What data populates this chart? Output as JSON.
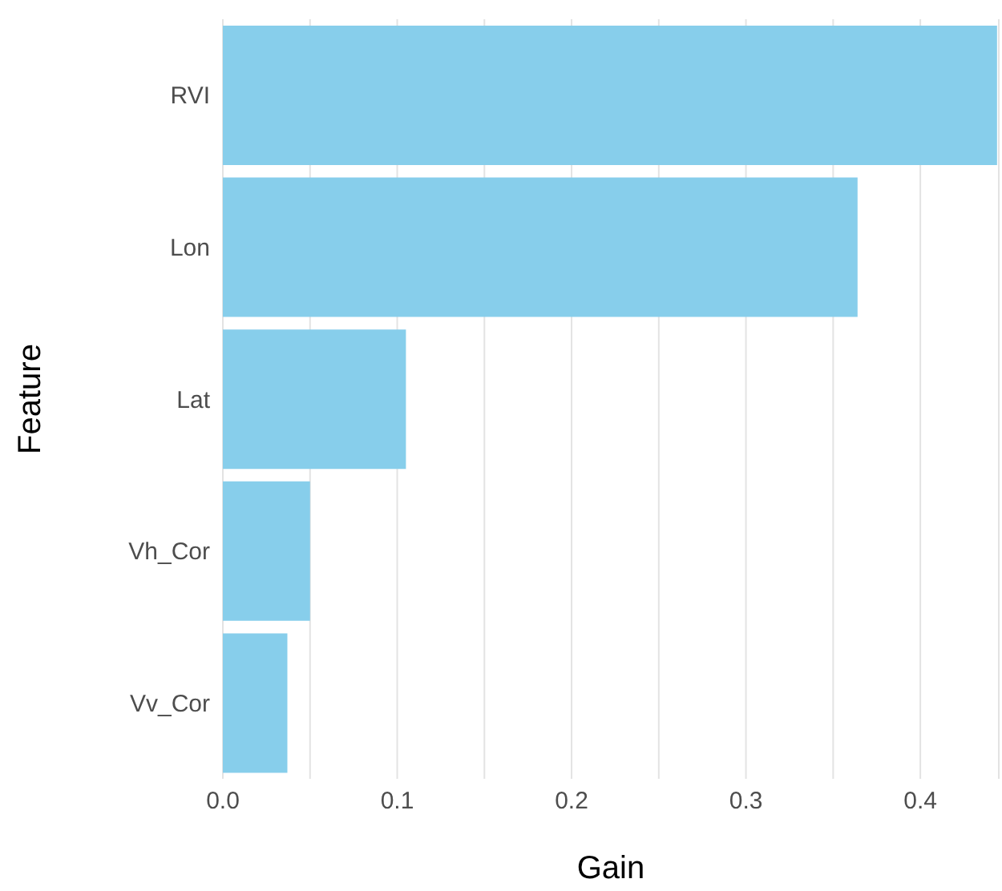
{
  "chart_data": {
    "type": "bar",
    "orientation": "horizontal",
    "xlabel": "Gain",
    "ylabel": "Feature",
    "categories": [
      "RVI",
      "Lon",
      "Lat",
      "Vh_Cor",
      "Vv_Cor"
    ],
    "values": [
      0.444,
      0.364,
      0.105,
      0.05,
      0.037
    ],
    "color": "#87ceeb",
    "xlim": [
      0,
      0.445
    ],
    "xticks": [
      {
        "value": 0,
        "label": "0.0"
      },
      {
        "value": 0.05,
        "label": null
      },
      0.1,
      {
        "value": 0.15,
        "label": null
      },
      0.2,
      {
        "value": 0.25,
        "label": null
      },
      0.3,
      {
        "value": 0.35,
        "label": null
      },
      0.4
    ],
    "grid": "x"
  }
}
